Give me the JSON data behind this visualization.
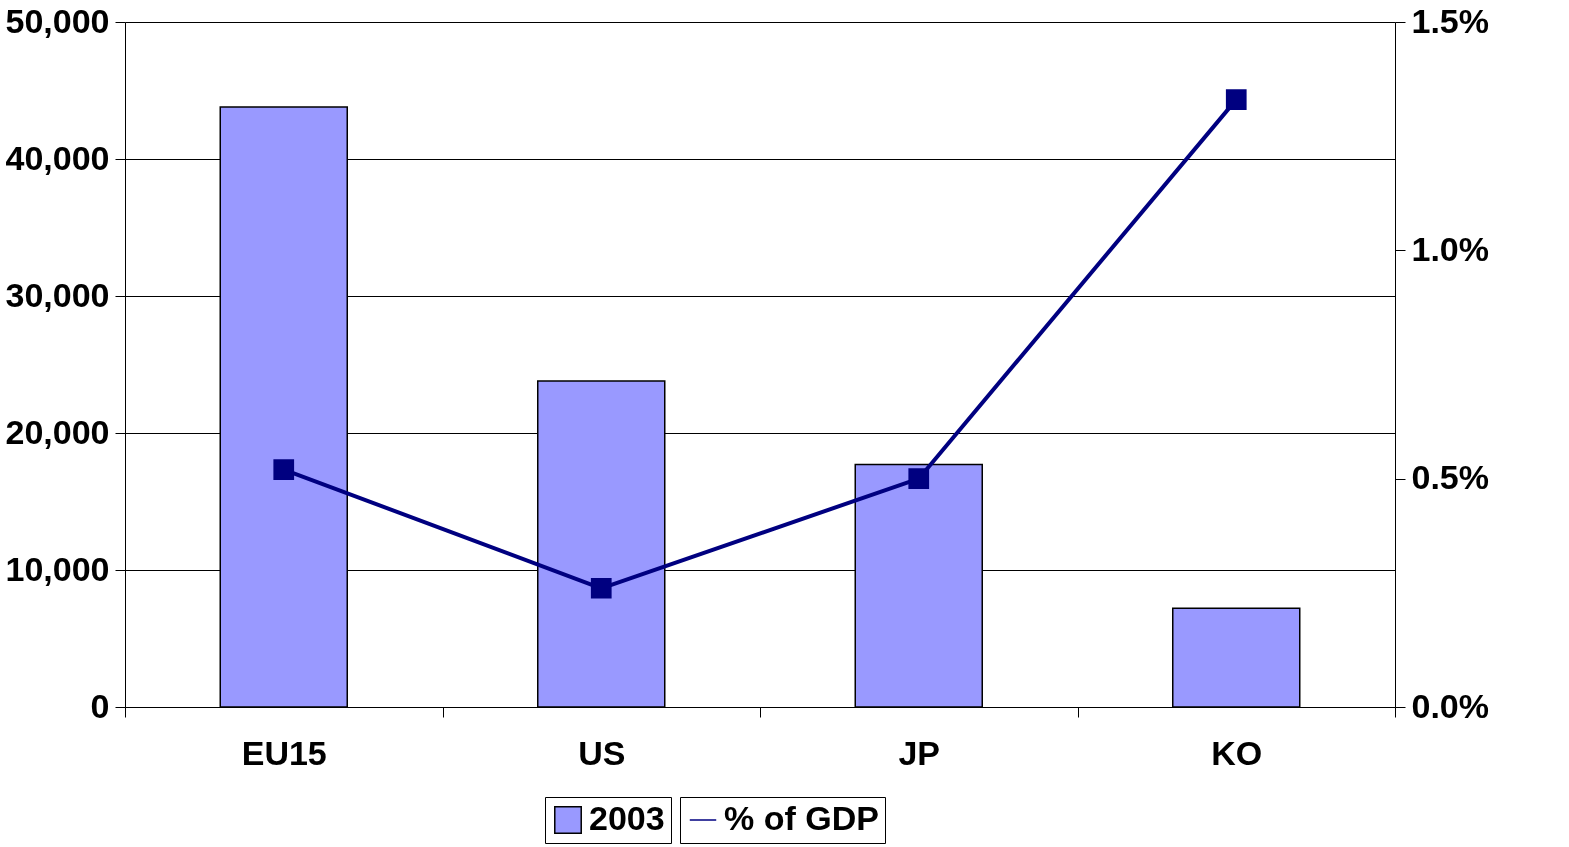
{
  "chart_data": {
    "type": "bar",
    "categories": [
      "EU15",
      "US",
      "JP",
      "KO"
    ],
    "series": [
      {
        "name": "2003",
        "color": "#9999ff",
        "values": [
          43800,
          23800,
          17700,
          7200
        ]
      },
      {
        "name": "% of GDP",
        "type": "line",
        "axis": "y2",
        "color": "#000080",
        "marker": "square",
        "line_style": "solid",
        "values": [
          0.52,
          0.26,
          0.5,
          1.33
        ]
      }
    ],
    "ylim": [
      0,
      50000
    ],
    "yticks": [
      {
        "value": 0,
        "label": "0"
      },
      {
        "value": 10000,
        "label": "10,000"
      },
      {
        "value": 20000,
        "label": "20,000"
      },
      {
        "value": 30000,
        "label": "30,000"
      },
      {
        "value": 40000,
        "label": "40,000"
      },
      {
        "value": 50000,
        "label": "50,000"
      }
    ],
    "y2lim": [
      0,
      1.5
    ],
    "y2ticks": [
      {
        "value": 0,
        "label": "0.0%"
      },
      {
        "value": 0.5,
        "label": "0.5%"
      },
      {
        "value": 1.0,
        "label": "1.0%"
      },
      {
        "value": 1.5,
        "label": "1.5%"
      }
    ],
    "grid": "y",
    "legend": "bottom"
  }
}
